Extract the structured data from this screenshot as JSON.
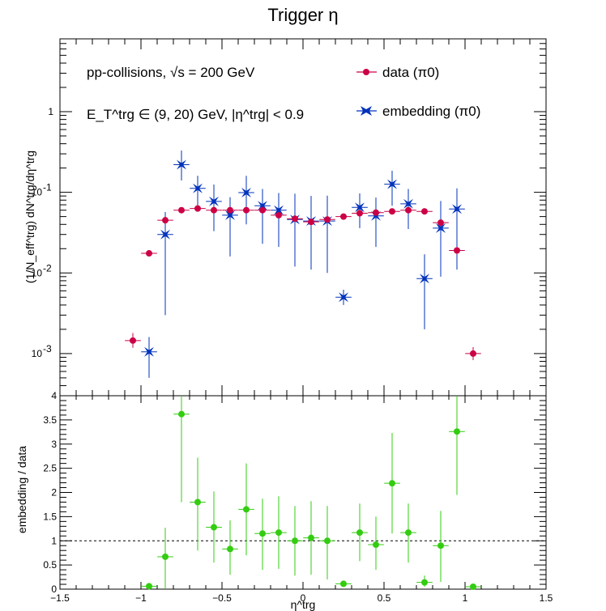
{
  "chart_data": [
    {
      "type": "scatter",
      "title": "Trigger η",
      "xlabel": "η^trg",
      "ylabel": "(1/N_eff^trg) dN^trg/dη^trg",
      "ylog": true,
      "xlim": [
        -1.5,
        1.5
      ],
      "ylim": [
        0.0003,
        8
      ],
      "yticks": [
        0.001,
        0.01,
        0.1,
        1
      ],
      "ytick_labels": [
        "10-3",
        "10-2",
        "10-1",
        "1"
      ],
      "annotations": [
        "pp-collisions, √s = 200 GeV",
        "E_T^trg ∈ (9, 20) GeV, |η^trg| < 0.9"
      ],
      "legend_position": "top-right",
      "colors": {
        "data": "#cc0044",
        "embedding": "#0033bb"
      },
      "series": [
        {
          "name": "data (π0)",
          "x": [
            -1.05,
            -0.95,
            -0.85,
            -0.75,
            -0.65,
            -0.55,
            -0.45,
            -0.35,
            -0.25,
            -0.15,
            -0.05,
            0.05,
            0.15,
            0.25,
            0.35,
            0.45,
            0.55,
            0.65,
            0.75,
            0.85,
            0.95,
            1.05
          ],
          "y": [
            0.00145,
            0.0175,
            0.045,
            0.06,
            0.063,
            0.06,
            0.06,
            0.06,
            0.06,
            0.052,
            0.047,
            0.043,
            0.046,
            0.05,
            0.055,
            0.056,
            0.058,
            0.06,
            0.058,
            0.042,
            0.019,
            0.001
          ],
          "yerr_low": [
            0.00118,
            0.0165,
            0.041,
            0.055,
            0.059,
            0.056,
            0.056,
            0.056,
            0.056,
            0.048,
            0.043,
            0.039,
            0.042,
            0.046,
            0.051,
            0.052,
            0.054,
            0.056,
            0.054,
            0.038,
            0.017,
            0.00083
          ],
          "yerr_high": [
            0.0018,
            0.0185,
            0.049,
            0.065,
            0.067,
            0.064,
            0.064,
            0.064,
            0.064,
            0.056,
            0.051,
            0.047,
            0.05,
            0.054,
            0.059,
            0.06,
            0.062,
            0.064,
            0.062,
            0.046,
            0.021,
            0.0012
          ]
        },
        {
          "name": "embedding (π0)",
          "x": [
            -0.95,
            -0.85,
            -0.75,
            -0.65,
            -0.55,
            -0.45,
            -0.35,
            -0.25,
            -0.15,
            -0.05,
            0.05,
            0.15,
            0.25,
            0.35,
            0.45,
            0.55,
            0.65,
            0.75,
            0.85,
            0.95
          ],
          "y": [
            0.00105,
            0.03,
            0.22,
            0.112,
            0.077,
            0.052,
            0.099,
            0.068,
            0.06,
            0.046,
            0.044,
            0.044,
            0.005,
            0.065,
            0.051,
            0.126,
            0.072,
            0.0085,
            0.036,
            0.062
          ],
          "yerr_low": [
            0.0005,
            0.003,
            0.14,
            0.06,
            0.033,
            0.016,
            0.04,
            0.023,
            0.021,
            0.012,
            0.011,
            0.01,
            0.004,
            0.036,
            0.021,
            0.068,
            0.035,
            0.002,
            0.009,
            0.011
          ],
          "yerr_high": [
            0.0016,
            0.057,
            0.33,
            0.16,
            0.125,
            0.087,
            0.16,
            0.11,
            0.098,
            0.096,
            0.09,
            0.091,
            0.0062,
            0.097,
            0.086,
            0.185,
            0.11,
            0.017,
            0.078,
            0.112
          ]
        }
      ]
    },
    {
      "type": "scatter",
      "xlabel": "η^trg",
      "ylabel": "embedding / data",
      "xlim": [
        -1.5,
        1.5
      ],
      "ylim": [
        0,
        4
      ],
      "xticks": [
        -1.5,
        -1,
        -0.5,
        0,
        0.5,
        1,
        1.5
      ],
      "xtick_labels": [
        "−1.5",
        "−1",
        "−0.5",
        "0",
        "0.5",
        "1",
        "1.5"
      ],
      "yticks": [
        0,
        0.5,
        1,
        1.5,
        2,
        2.5,
        3,
        3.5,
        4
      ],
      "ytick_labels": [
        "0",
        "0.5",
        "1",
        "1.5",
        "2",
        "2.5",
        "3",
        "3.5",
        "4"
      ],
      "reference_line": 1,
      "colors": {
        "ratio": "#33cc11"
      },
      "series": [
        {
          "name": "",
          "x": [
            -0.95,
            -0.85,
            -0.75,
            -0.65,
            -0.55,
            -0.45,
            -0.35,
            -0.25,
            -0.15,
            -0.05,
            0.05,
            0.15,
            0.25,
            0.35,
            0.45,
            0.55,
            0.65,
            0.75,
            0.85,
            0.95,
            1.05
          ],
          "y": [
            0.06,
            0.67,
            3.62,
            1.8,
            1.28,
            0.83,
            1.65,
            1.15,
            1.17,
            1.0,
            1.06,
            1.0,
            0.11,
            1.17,
            0.92,
            2.19,
            1.17,
            0.14,
            0.9,
            3.26,
            0.05
          ],
          "yerr_low": [
            0.0,
            0.0,
            1.8,
            0.8,
            0.55,
            0.3,
            0.7,
            0.4,
            0.42,
            0.28,
            0.3,
            0.2,
            0.05,
            0.58,
            0.4,
            1.15,
            0.55,
            0.05,
            0.15,
            1.95,
            0.0
          ],
          "yerr_high": [
            0.1,
            1.27,
            4.0,
            2.72,
            2.02,
            1.42,
            2.6,
            1.87,
            1.92,
            1.72,
            1.82,
            1.72,
            0.17,
            1.77,
            1.5,
            3.23,
            1.77,
            0.28,
            1.62,
            4.0,
            0.1
          ]
        }
      ]
    }
  ]
}
